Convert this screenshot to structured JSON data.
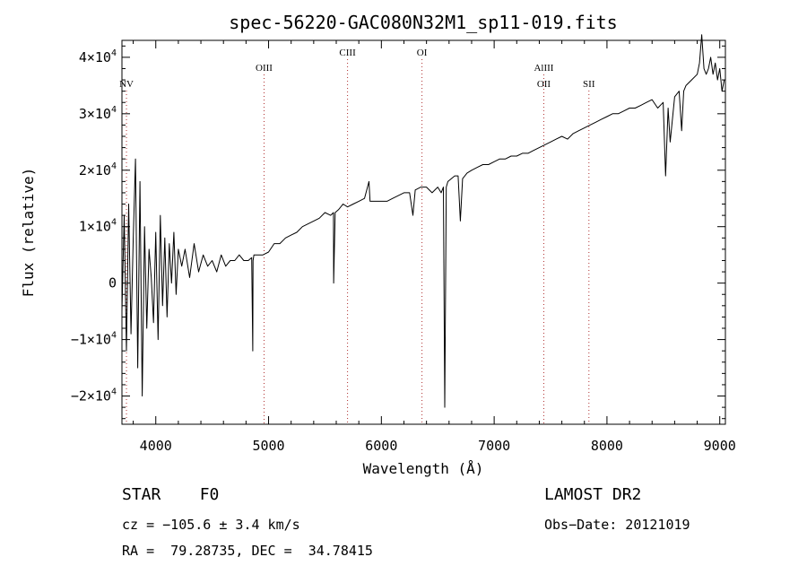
{
  "chart_data": {
    "type": "line",
    "title": "spec-56220-GAC080N32M1_sp11-019.fits",
    "xlabel": "Wavelength (Å)",
    "ylabel": "Flux (relative)",
    "xlim": [
      3700,
      9050
    ],
    "ylim": [
      -25000,
      43000
    ],
    "x_ticks": [
      4000,
      5000,
      6000,
      7000,
      8000,
      9000
    ],
    "y_ticks": [
      {
        "value": -20000,
        "mantissa": "−2",
        "base": "10",
        "exp": "4"
      },
      {
        "value": -10000,
        "mantissa": "−1",
        "base": "10",
        "exp": "4"
      },
      {
        "value": 0,
        "mantissa": "0",
        "base": "",
        "exp": ""
      },
      {
        "value": 10000,
        "mantissa": "1",
        "base": "10",
        "exp": "4"
      },
      {
        "value": 20000,
        "mantissa": "2",
        "base": "10",
        "exp": "4"
      },
      {
        "value": 30000,
        "mantissa": "3",
        "base": "10",
        "exp": "4"
      },
      {
        "value": 40000,
        "mantissa": "4",
        "base": "10",
        "exp": "4"
      }
    ],
    "grid": false,
    "line_color": "#000000",
    "marker_color": "#b03030",
    "series": [
      {
        "x": [
          3700,
          3720,
          3740,
          3760,
          3780,
          3800,
          3820,
          3840,
          3860,
          3880,
          3900,
          3920,
          3940,
          3960,
          3980,
          4000,
          4020,
          4040,
          4060,
          4080,
          4100,
          4120,
          4140,
          4160,
          4180,
          4200,
          4230,
          4260,
          4300,
          4340,
          4380,
          4420,
          4460,
          4500,
          4540,
          4580,
          4620,
          4660,
          4700,
          4740,
          4780,
          4820,
          4850,
          4860,
          4862,
          4870,
          4900,
          4950,
          5000,
          5050,
          5100,
          5150,
          5200,
          5250,
          5300,
          5350,
          5400,
          5450,
          5500,
          5550,
          5575,
          5577,
          5590,
          5620,
          5660,
          5700,
          5750,
          5800,
          5850,
          5890,
          5900,
          5950,
          6000,
          6050,
          6100,
          6150,
          6200,
          6250,
          6280,
          6300,
          6350,
          6400,
          6450,
          6500,
          6530,
          6550,
          6562,
          6575,
          6590,
          6620,
          6650,
          6680,
          6700,
          6720,
          6740,
          6760,
          6800,
          6850,
          6900,
          6950,
          7000,
          7050,
          7100,
          7150,
          7200,
          7250,
          7300,
          7350,
          7400,
          7450,
          7500,
          7550,
          7600,
          7650,
          7700,
          7750,
          7800,
          7850,
          7900,
          7950,
          8000,
          8050,
          8100,
          8150,
          8200,
          8250,
          8300,
          8350,
          8400,
          8450,
          8498,
          8520,
          8542,
          8560,
          8600,
          8640,
          8662,
          8680,
          8700,
          8750,
          8800,
          8820,
          8840,
          8860,
          8880,
          8900,
          8920,
          8940,
          8960,
          8980,
          9000,
          9020,
          9040
        ],
        "y": [
          -5000,
          12000,
          -12000,
          14000,
          -9000,
          8000,
          22000,
          -15000,
          18000,
          -20000,
          10000,
          -8000,
          6000,
          1000,
          -7000,
          9000,
          -10000,
          12000,
          -4000,
          8000,
          -6000,
          7000,
          0,
          9000,
          -2000,
          6000,
          3000,
          6000,
          1000,
          7000,
          2000,
          5000,
          3000,
          4000,
          2000,
          5000,
          3000,
          4000,
          4000,
          5000,
          4000,
          4000,
          4500,
          -12000,
          4000,
          5000,
          5000,
          5000,
          5500,
          7000,
          7000,
          8000,
          8500,
          9000,
          10000,
          10500,
          11000,
          11500,
          12500,
          12000,
          12500,
          0,
          12500,
          13000,
          14000,
          13500,
          14000,
          14500,
          15000,
          18000,
          14500,
          14500,
          14500,
          14500,
          15000,
          15500,
          16000,
          16000,
          12000,
          16500,
          17000,
          17000,
          16000,
          17000,
          16000,
          17000,
          -22000,
          17000,
          18000,
          18500,
          19000,
          19000,
          11000,
          18500,
          19000,
          19500,
          20000,
          20500,
          21000,
          21000,
          21500,
          22000,
          22000,
          22500,
          22500,
          23000,
          23000,
          23500,
          24000,
          24500,
          25000,
          25500,
          26000,
          25500,
          26500,
          27000,
          27500,
          28000,
          28500,
          29000,
          29500,
          30000,
          30000,
          30500,
          31000,
          31000,
          31500,
          32000,
          32500,
          31000,
          32000,
          19000,
          31000,
          25000,
          33000,
          34000,
          27000,
          34000,
          35000,
          36000,
          37000,
          39000,
          44000,
          38000,
          37000,
          38000,
          40000,
          37000,
          39000,
          36000,
          38000,
          34000,
          36000
        ]
      }
    ],
    "line_markers": [
      {
        "label": "NV",
        "x": 3740,
        "row": 3
      },
      {
        "label": "OIII",
        "x": 4960,
        "row": 2
      },
      {
        "label": "CIII",
        "x": 5700,
        "row": 1
      },
      {
        "label": "OI",
        "x": 6360,
        "row": 1
      },
      {
        "label": "AlIII",
        "x": 7440,
        "row": 2
      },
      {
        "label": "OII",
        "x": 7440,
        "row": 3
      },
      {
        "label": "SII",
        "x": 7840,
        "row": 3
      }
    ]
  },
  "info": {
    "classification": "STAR    F0",
    "cz": "cz = −105.6 ± 3.4 km/s",
    "radec": "RA =  79.28735, DEC =  34.78415",
    "survey": "LAMOST DR2",
    "obs_date": "Obs−Date: 20121019"
  }
}
